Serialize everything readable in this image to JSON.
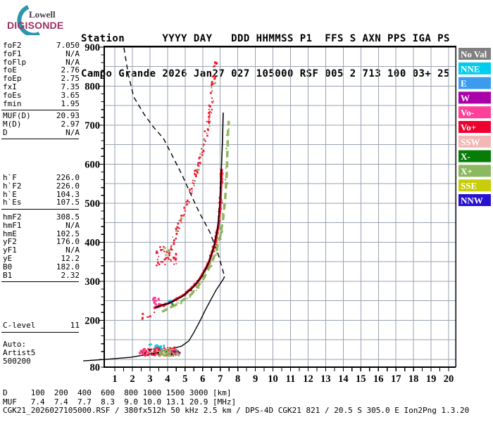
{
  "logo": {
    "line1": "Lowell",
    "line2": "DIGISONDE"
  },
  "header": {
    "line1": "Station      YYYY DAY   DDD HHMMSS P1  FFS S AXN PPS IGA PS",
    "line2": "Campo Grande 2026 Jan27 027 105000 RSF 005 2 713 100 03+ 25"
  },
  "params": {
    "groups": [
      {
        "rows": [
          [
            "foF2",
            "7.050"
          ],
          [
            "foF1",
            "N/A"
          ],
          [
            "foFlp",
            "N/A"
          ],
          [
            "foE",
            "2.76"
          ],
          [
            "foEp",
            "2.75"
          ],
          [
            "fxI",
            "7.35"
          ],
          [
            "foEs",
            "3.65"
          ],
          [
            "fmin",
            "1.95"
          ]
        ]
      },
      {
        "rows": [
          [
            "MUF(D)",
            "20.93"
          ],
          [
            "M(D)",
            "2.97"
          ],
          [
            "D",
            "N/A"
          ]
        ]
      },
      {
        "rows": [
          [
            "h`F",
            "226.0"
          ],
          [
            "h`F2",
            "226.0"
          ],
          [
            "h`E",
            "104.3"
          ],
          [
            "h`Es",
            "107.5"
          ]
        ]
      },
      {
        "rows": [
          [
            "hmF2",
            "308.5"
          ],
          [
            "hmF1",
            "N/A"
          ],
          [
            "hmE",
            "102.5"
          ],
          [
            "yF2",
            "176.0"
          ],
          [
            "yF1",
            "N/A"
          ],
          [
            "yE",
            "12.2"
          ],
          [
            "B0",
            "182.0"
          ],
          [
            "B1",
            "2.32"
          ]
        ]
      },
      {
        "rows": [
          [
            "C-level",
            "11"
          ]
        ]
      },
      {
        "rows": [
          [
            "Auto:",
            ""
          ],
          [
            "Artist5",
            ""
          ],
          [
            "500200",
            ""
          ]
        ]
      }
    ]
  },
  "legend": {
    "items": [
      {
        "label": "No Val",
        "color": "#808080"
      },
      {
        "label": "NNE",
        "color": "#00ccee"
      },
      {
        "label": "E",
        "color": "#3d9bee"
      },
      {
        "label": "W",
        "color": "#aa00aa"
      },
      {
        "label": "Vo-",
        "color": "#ff4099"
      },
      {
        "label": "Vo+",
        "color": "#ee0030"
      },
      {
        "label": "SSW",
        "color": "#f2b8b5"
      },
      {
        "label": "X-",
        "color": "#067d06"
      },
      {
        "label": "X+",
        "color": "#8cb860"
      },
      {
        "label": "SSE",
        "color": "#c8cc0a"
      },
      {
        "label": "NNW",
        "color": "#2812cf"
      }
    ]
  },
  "footer": {
    "d_row": "D     100  200  400  600  800 1000 1500 3000 [km]",
    "muf_row": "MUF   7.4  7.4  7.7  8.3  9.0 10.0 13.1 20.9 [MHz]",
    "status": "CGK21_2026027105000.RSF / 380fx512h 50 kHz 2.5 km / DPS-4D CGK21 821 / 20.5 S 305.0 E Ion2Png 1.3.20"
  },
  "chart_data": {
    "type": "scatter",
    "title": "Digisonde ionogram, Campo Grande, 2026 Jan 27 10:50:00",
    "x_axis": {
      "unit": "MHz",
      "min": 1,
      "max": 20,
      "tick_step": 1,
      "minor_step": 0.5
    },
    "y_axis": {
      "unit": "km",
      "min": 80,
      "max": 900,
      "labels": [
        900,
        800,
        700,
        600,
        500,
        400,
        300,
        200,
        80
      ],
      "grid_step": 50,
      "minor_tick": 20
    },
    "grid_color": "#9aa1b0",
    "curves": [
      {
        "name": "transmission-curve",
        "dash": "7 5",
        "width": 1.4,
        "points": [
          [
            1.52,
            898
          ],
          [
            1.76,
            831
          ],
          [
            2.08,
            772
          ],
          [
            2.68,
            727
          ],
          [
            3.2,
            695
          ],
          [
            3.77,
            666
          ],
          [
            4.81,
            574
          ],
          [
            5.3,
            525
          ],
          [
            5.81,
            476
          ],
          [
            6.41,
            426
          ],
          [
            6.89,
            368
          ],
          [
            7.25,
            312
          ]
        ]
      },
      {
        "name": "true-height-profile",
        "dash": "",
        "width": 1.4,
        "points": [
          [
            -0.8,
            96
          ],
          [
            0.48,
            100
          ],
          [
            1.88,
            105
          ],
          [
            3.08,
            114
          ],
          [
            4.09,
            125
          ],
          [
            4.81,
            134
          ],
          [
            5.21,
            147
          ],
          [
            5.49,
            168
          ],
          [
            5.81,
            195
          ],
          [
            6.17,
            228
          ],
          [
            6.49,
            255
          ],
          [
            6.77,
            278
          ],
          [
            7.01,
            294
          ],
          [
            7.17,
            305
          ],
          [
            7.25,
            312
          ]
        ]
      },
      {
        "name": "otrace-fit",
        "dash": "",
        "width": 1.6,
        "points": [
          [
            3.28,
            233
          ],
          [
            4.09,
            244
          ],
          [
            4.81,
            260
          ],
          [
            5.45,
            284
          ],
          [
            5.97,
            314
          ],
          [
            6.37,
            350
          ],
          [
            6.65,
            390
          ],
          [
            6.85,
            435
          ],
          [
            6.97,
            498
          ],
          [
            7.05,
            570
          ],
          [
            7.13,
            660
          ],
          [
            7.17,
            732
          ]
        ]
      }
    ],
    "traces": [
      {
        "name": "f-trace-o",
        "color": "#ed1b34",
        "width": 3.5,
        "dash": "",
        "points": [
          [
            3.2,
            231
          ],
          [
            4.09,
            244
          ],
          [
            4.97,
            266
          ],
          [
            5.73,
            298
          ],
          [
            6.33,
            345
          ],
          [
            6.73,
            401
          ],
          [
            6.93,
            453
          ],
          [
            7.01,
            498
          ],
          [
            7.05,
            543
          ],
          [
            7.09,
            588
          ]
        ]
      },
      {
        "name": "f-trace-x",
        "color": "#8cb860",
        "width": 3.5,
        "dash": "9 6",
        "points": [
          [
            3.69,
            222
          ],
          [
            4.57,
            242
          ],
          [
            5.37,
            267
          ],
          [
            6.01,
            303
          ],
          [
            6.45,
            341
          ],
          [
            6.77,
            377
          ],
          [
            7.01,
            417
          ],
          [
            7.17,
            462
          ],
          [
            7.29,
            516
          ],
          [
            7.37,
            574
          ],
          [
            7.41,
            633
          ],
          [
            7.45,
            691
          ],
          [
            7.49,
            711
          ]
        ]
      },
      {
        "name": "second-hop",
        "color": "none",
        "width": 0,
        "dash": "",
        "points": [
          [
            4.21,
            379
          ],
          [
            4.7,
            450
          ],
          [
            5.09,
            498
          ],
          [
            5.5,
            560
          ],
          [
            5.89,
            615
          ],
          [
            6.17,
            672
          ],
          [
            6.41,
            732
          ],
          [
            6.57,
            790
          ],
          [
            6.67,
            830
          ],
          [
            6.73,
            866
          ]
        ]
      }
    ],
    "clusters": [
      {
        "name": "es-layer-red",
        "color": "#ed1b34",
        "region": [
          2.48,
          4.57,
          109,
          131
        ],
        "count": 130,
        "size": 2
      },
      {
        "name": "es-layer-green",
        "color": "#8cb860",
        "region": [
          3.5,
          4.75,
          108,
          126
        ],
        "count": 60,
        "size": 2
      },
      {
        "name": "es-layer-cyan",
        "color": "#00ccee",
        "region": [
          2.9,
          3.8,
          126,
          139
        ],
        "count": 12,
        "size": 2
      },
      {
        "name": "es-layer-pink",
        "color": "#ff4099",
        "region": [
          2.38,
          3.05,
          110,
          127
        ],
        "count": 16,
        "size": 2
      },
      {
        "name": "es-layer-magenta",
        "color": "#aa00aa",
        "region": [
          4.35,
          4.7,
          110,
          123
        ],
        "count": 5,
        "size": 2
      },
      {
        "name": "es-layer-black",
        "color": "#000000",
        "region": [
          2.6,
          4.3,
          112,
          128
        ],
        "count": 10,
        "size": 1.5
      },
      {
        "name": "ftrace-start-pink",
        "color": "#ff4099",
        "region": [
          3.18,
          3.75,
          238,
          258
        ],
        "count": 18,
        "size": 2.5
      },
      {
        "name": "ftrace-start-cyan",
        "color": "#00ccee",
        "region": [
          3.95,
          4.2,
          242,
          253
        ],
        "count": 6,
        "size": 2
      },
      {
        "name": "ftrace-start-blue",
        "color": "#3d9bee",
        "region": [
          4.18,
          4.3,
          243,
          250
        ],
        "count": 3,
        "size": 2
      },
      {
        "name": "ftrace-start-dkgreen",
        "color": "#067d06",
        "region": [
          4.26,
          4.36,
          238,
          255
        ],
        "count": 6,
        "size": 2
      },
      {
        "name": "low-scatter-red",
        "color": "#ed1b34",
        "region": [
          2.4,
          3.25,
          203,
          224
        ],
        "count": 9,
        "size": 2
      },
      {
        "name": "mid-cluster-red",
        "color": "#ed1b34",
        "region": [
          3.35,
          4.55,
          340,
          390
        ],
        "count": 42,
        "size": 2
      },
      {
        "name": "mid-cluster-green",
        "color": "#8cb860",
        "region": [
          3.8,
          4.55,
          342,
          392
        ],
        "count": 7,
        "size": 2
      },
      {
        "name": "f-trace-o-scatter",
        "color": "#ed1b34",
        "along": "f-trace-o",
        "count": 150,
        "jitter": 1.8,
        "size": 2
      },
      {
        "name": "f-trace-x-scatter",
        "color": "#8cb860",
        "along": "f-trace-x",
        "count": 45,
        "jitter": 2.2,
        "size": 2
      },
      {
        "name": "second-hop-red",
        "color": "#ed1b34",
        "along": "second-hop",
        "count": 120,
        "jitter": 2.4,
        "size": 2
      },
      {
        "name": "second-hop-green",
        "color": "#8cb860",
        "along": "second-hop",
        "count": 13,
        "jitter": 3.2,
        "size": 2
      }
    ]
  }
}
